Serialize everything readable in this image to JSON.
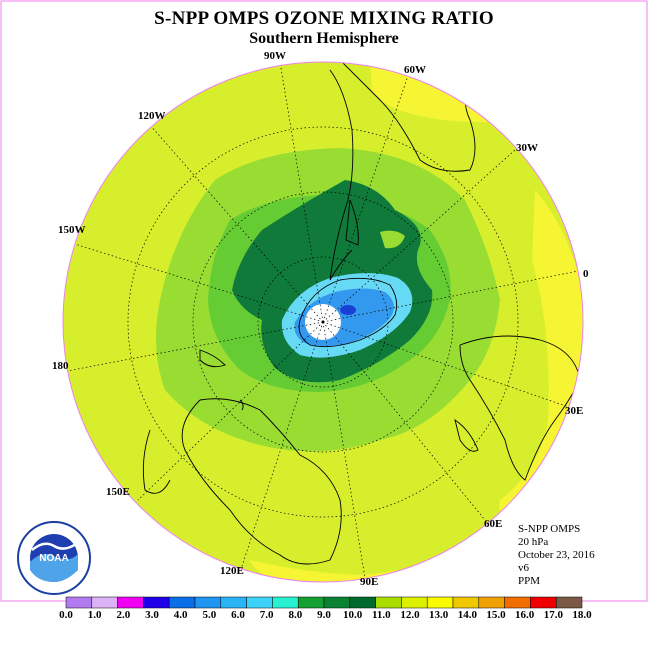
{
  "title": "S-NPP OMPS OZONE MIXING RATIO",
  "subtitle": "Southern Hemisphere",
  "longitude_labels": [
    {
      "id": "lon-90w",
      "text": "90W"
    },
    {
      "id": "lon-60w",
      "text": "60W"
    },
    {
      "id": "lon-120w",
      "text": "120W"
    },
    {
      "id": "lon-30w",
      "text": "30W"
    },
    {
      "id": "lon-150w",
      "text": "150W"
    },
    {
      "id": "lon-0",
      "text": "0"
    },
    {
      "id": "lon-180",
      "text": "180"
    },
    {
      "id": "lon-30e",
      "text": "30E"
    },
    {
      "id": "lon-150e",
      "text": "150E"
    },
    {
      "id": "lon-60e",
      "text": "60E"
    },
    {
      "id": "lon-120e",
      "text": "120E"
    },
    {
      "id": "lon-90e",
      "text": "90E"
    }
  ],
  "info": {
    "instrument": "S-NPP OMPS",
    "level": "20 hPa",
    "date": "October 23, 2016",
    "version": "v6",
    "units": "PPM"
  },
  "logo": {
    "text": "NOAA",
    "icon": "noaa-logo"
  },
  "colorbar": {
    "ticks": [
      "0.0",
      "1.0",
      "2.0",
      "3.0",
      "4.0",
      "5.0",
      "6.0",
      "7.0",
      "8.0",
      "9.0",
      "10.0",
      "11.0",
      "12.0",
      "13.0",
      "14.0",
      "15.0",
      "16.0",
      "17.0",
      "18.0"
    ],
    "colors": [
      "#b27bf0",
      "#dcb2f6",
      "#f000f0",
      "#1f00e8",
      "#0a6ee6",
      "#1e96f0",
      "#28b4f5",
      "#3cd2fa",
      "#28f0d2",
      "#14a032",
      "#0a8232",
      "#006a2d",
      "#aadc00",
      "#dcf000",
      "#fafa00",
      "#f0c800",
      "#f0a000",
      "#f06e00",
      "#f00000",
      "#7a5a46"
    ]
  },
  "colors": {
    "ocean_base": "#d7ee2d",
    "yellow": "#f5f533",
    "green_light": "#99dd33",
    "green_mid": "#66cc33",
    "green_dark": "#0f7a3a",
    "blue_light": "#66d9f5",
    "blue_mid": "#3399ee",
    "blue_dark": "#1a3fd6",
    "border": "#ee82ee"
  }
}
